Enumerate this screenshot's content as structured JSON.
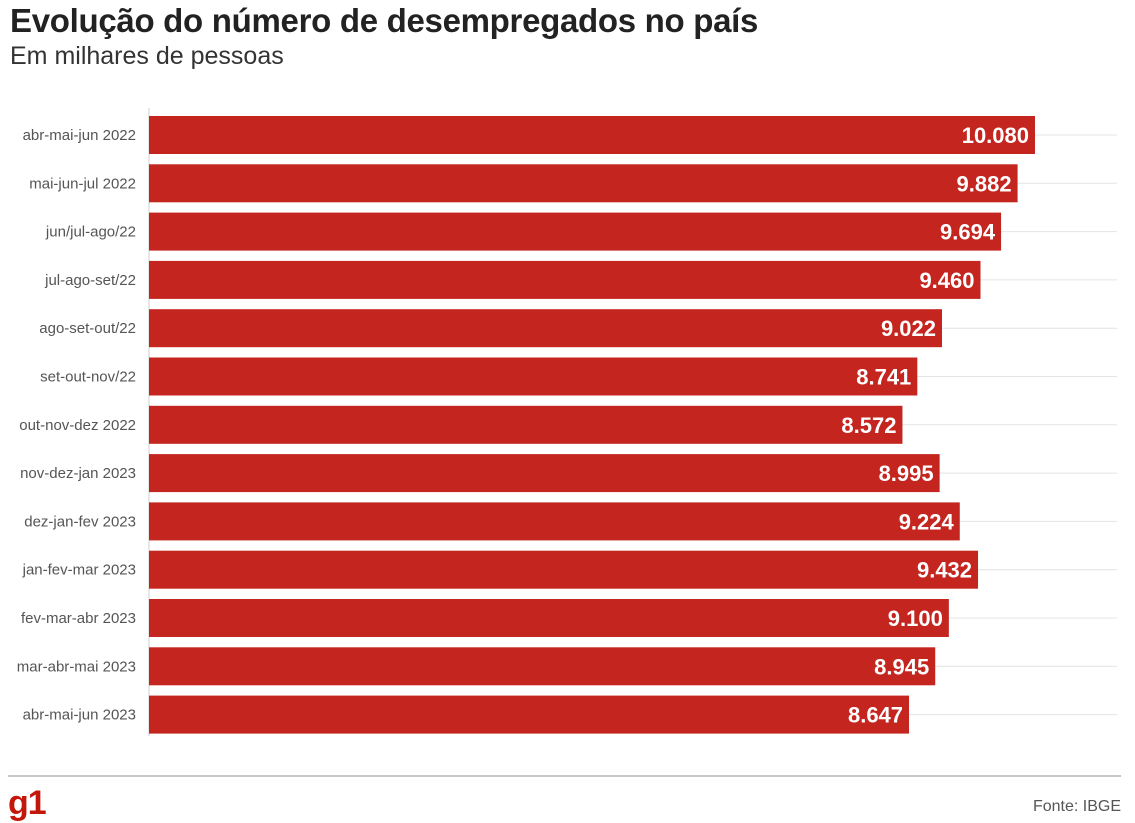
{
  "title": "Evolução do número de desempregados no país",
  "subtitle": "Em milhares de pessoas",
  "source": "Fonte: IBGE",
  "logo": "g1",
  "colors": {
    "bar": "#c4251f",
    "label": "#555555",
    "value": "#ffffff",
    "logo": "#c4170c"
  },
  "chart_data": {
    "type": "bar",
    "orientation": "horizontal",
    "title": "Evolução do número de desempregados no país",
    "subtitle": "Em milhares de pessoas",
    "categories": [
      "abr-mai-jun 2022",
      "mai-jun-jul 2022",
      "jun/jul-ago/22",
      "jul-ago-set/22",
      "ago-set-out/22",
      "set-out-nov/22",
      "out-nov-dez 2022",
      "nov-dez-jan 2023",
      "dez-jan-fev 2023",
      "jan-fev-mar 2023",
      "fev-mar-abr 2023",
      "mar-abr-mai 2023",
      "abr-mai-jun 2023"
    ],
    "values": [
      10080,
      9882,
      9694,
      9460,
      9022,
      8741,
      8572,
      8995,
      9224,
      9432,
      9100,
      8945,
      8647
    ],
    "value_labels": [
      "10.080",
      "9.882",
      "9.694",
      "9.460",
      "9.022",
      "8.741",
      "8.572",
      "8.995",
      "9.224",
      "9.432",
      "9.100",
      "8.945",
      "8.647"
    ],
    "xlim": [
      0,
      11000
    ],
    "xlabel": "",
    "ylabel": "",
    "grid": true,
    "legend": "none"
  }
}
